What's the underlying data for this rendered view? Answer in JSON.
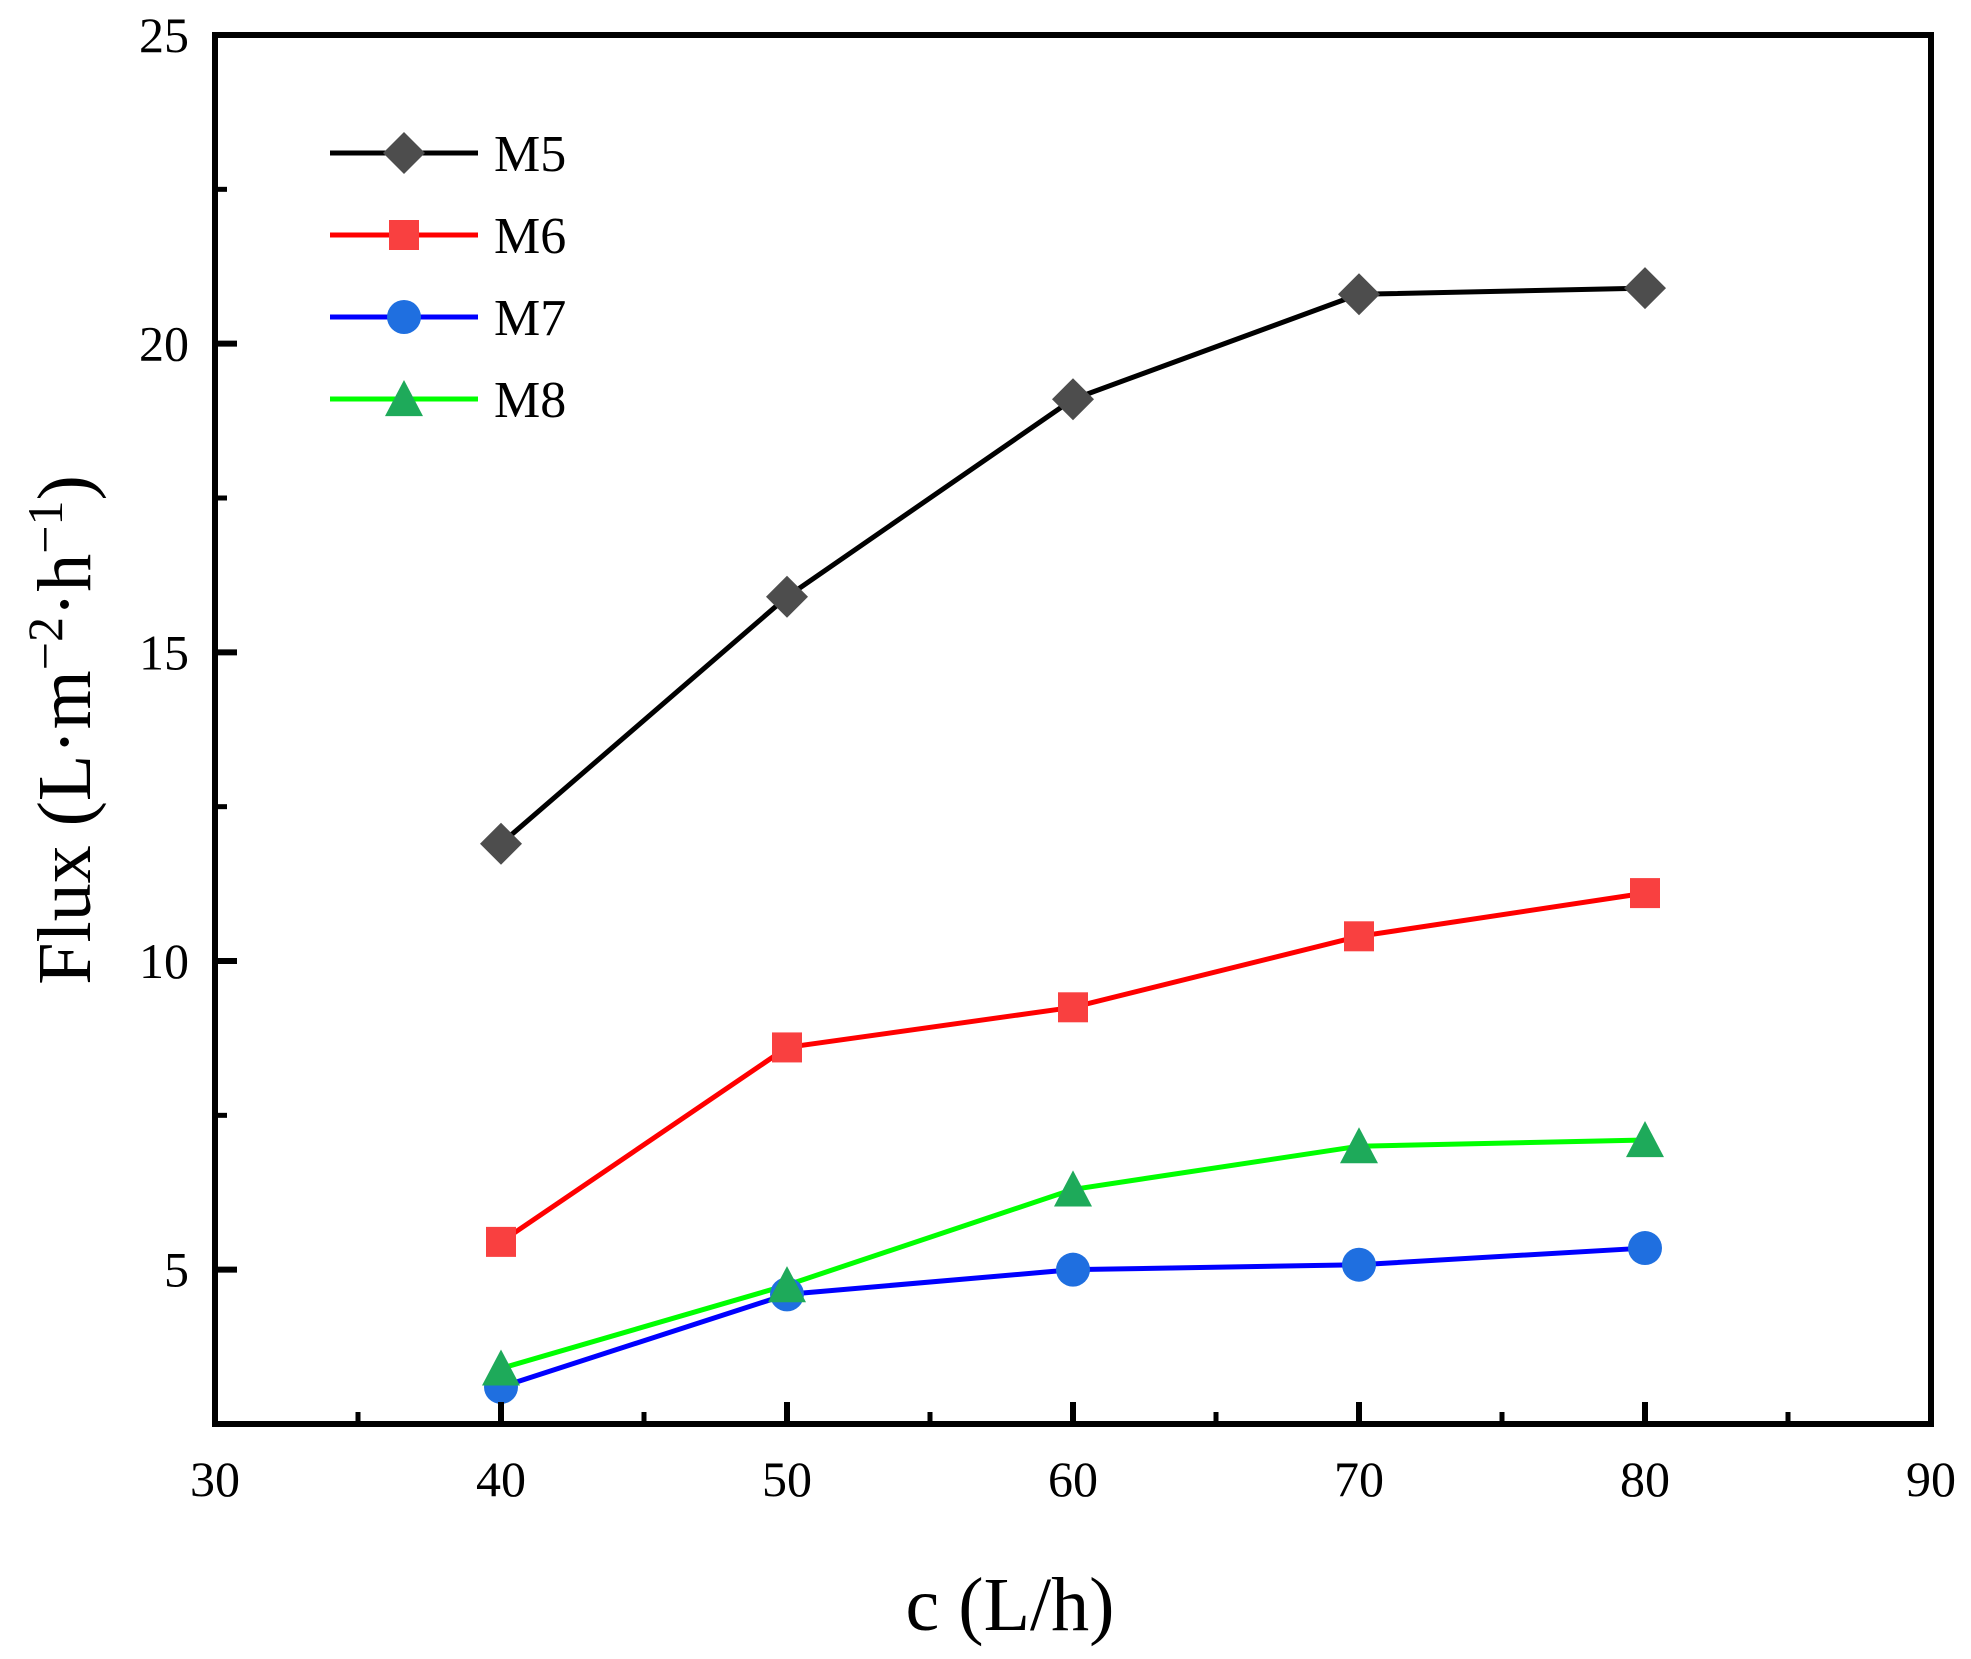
{
  "chart_data": {
    "type": "line",
    "title": "",
    "xlabel": "c (L/h)",
    "ylabel_main": "Flux (L·m",
    "ylabel_sup1": "−2",
    "ylabel_mid": "·h",
    "ylabel_sup2": "−1",
    "ylabel_end": ")",
    "xlim": [
      30,
      90
    ],
    "ylim": [
      2.5,
      25
    ],
    "x_major_ticks": [
      30,
      40,
      50,
      60,
      70,
      80,
      90
    ],
    "x_minor_ticks": [
      35,
      45,
      55,
      65,
      75,
      85
    ],
    "y_major_ticks": [
      5,
      10,
      15,
      20,
      25
    ],
    "y_minor_ticks": [
      7.5,
      12.5,
      17.5,
      22.5
    ],
    "x_tick_labels": [
      "30",
      "40",
      "50",
      "60",
      "70",
      "80",
      "90"
    ],
    "y_tick_labels": [
      "5",
      "10",
      "15",
      "20",
      "25"
    ],
    "legend_position": "top-left",
    "grid": false,
    "x": [
      40,
      50,
      60,
      70,
      80
    ],
    "series": [
      {
        "name": "M5",
        "marker": "diamond",
        "line_color": "#000000",
        "marker_color": "#4d4d4d",
        "values": [
          11.9,
          15.9,
          19.1,
          20.8,
          20.9
        ]
      },
      {
        "name": "M6",
        "marker": "square",
        "line_color": "#ff0000",
        "marker_color": "#f94040",
        "values": [
          5.45,
          8.6,
          9.25,
          10.4,
          11.1
        ]
      },
      {
        "name": "M7",
        "marker": "circle",
        "line_color": "#0000ff",
        "marker_color": "#1f6fe0",
        "values": [
          3.1,
          4.6,
          5.0,
          5.08,
          5.35
        ]
      },
      {
        "name": "M8",
        "marker": "triangle",
        "line_color": "#00ff00",
        "marker_color": "#1eaa5a",
        "values": [
          3.4,
          4.75,
          6.3,
          7.0,
          7.1
        ]
      }
    ]
  }
}
